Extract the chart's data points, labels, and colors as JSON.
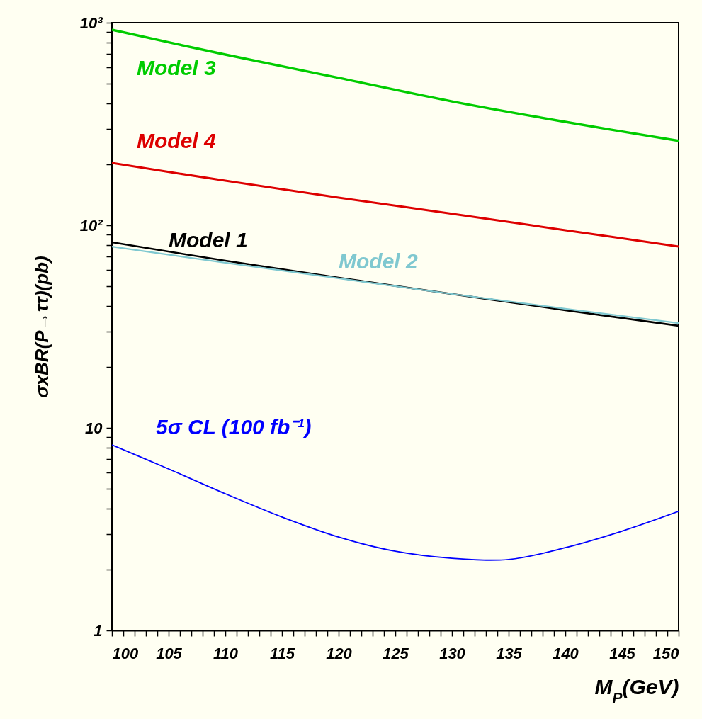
{
  "chart_data": {
    "type": "line",
    "xlabel": "M$_{P}$(GeV)",
    "ylabel": "σxBR(P→ττ)(pb)",
    "log": "y",
    "grid": false,
    "x": [
      100,
      110,
      120,
      130,
      140,
      150
    ],
    "xlim": [
      100,
      150
    ],
    "xticks": [
      100,
      {
        "value": 101,
        "label": null
      },
      {
        "value": 102,
        "label": null
      },
      {
        "value": 103,
        "label": null
      },
      {
        "value": 104,
        "label": null
      },
      105,
      {
        "value": 106,
        "label": null
      },
      {
        "value": 107,
        "label": null
      },
      {
        "value": 108,
        "label": null
      },
      {
        "value": 109,
        "label": null
      },
      110,
      {
        "value": 111,
        "label": null
      },
      {
        "value": 112,
        "label": null
      },
      {
        "value": 113,
        "label": null
      },
      {
        "value": 114,
        "label": null
      },
      115,
      {
        "value": 116,
        "label": null
      },
      {
        "value": 117,
        "label": null
      },
      {
        "value": 118,
        "label": null
      },
      {
        "value": 119,
        "label": null
      },
      120,
      {
        "value": 121,
        "label": null
      },
      {
        "value": 122,
        "label": null
      },
      {
        "value": 123,
        "label": null
      },
      {
        "value": 124,
        "label": null
      },
      125,
      {
        "value": 126,
        "label": null
      },
      {
        "value": 127,
        "label": null
      },
      {
        "value": 128,
        "label": null
      },
      {
        "value": 129,
        "label": null
      },
      130,
      {
        "value": 131,
        "label": null
      },
      {
        "value": 132,
        "label": null
      },
      {
        "value": 133,
        "label": null
      },
      {
        "value": 134,
        "label": null
      },
      135,
      {
        "value": 136,
        "label": null
      },
      {
        "value": 137,
        "label": null
      },
      {
        "value": 138,
        "label": null
      },
      {
        "value": 139,
        "label": null
      },
      140,
      {
        "value": 141,
        "label": null
      },
      {
        "value": 142,
        "label": null
      },
      {
        "value": 143,
        "label": null
      },
      {
        "value": 144,
        "label": null
      },
      145,
      {
        "value": 146,
        "label": null
      },
      {
        "value": 147,
        "label": null
      },
      {
        "value": 148,
        "label": null
      },
      {
        "value": 149,
        "label": null
      },
      150
    ],
    "ylim": [
      1,
      1000
    ],
    "yticks": [
      1,
      {
        "value": 2,
        "label": null
      },
      {
        "value": 3,
        "label": null
      },
      {
        "value": 4,
        "label": null
      },
      {
        "value": 5,
        "label": null
      },
      {
        "value": 6,
        "label": null
      },
      {
        "value": 7,
        "label": null
      },
      {
        "value": 8,
        "label": null
      },
      {
        "value": 9,
        "label": null
      },
      10,
      {
        "value": 20,
        "label": null
      },
      {
        "value": 30,
        "label": null
      },
      {
        "value": 40,
        "label": null
      },
      {
        "value": 50,
        "label": null
      },
      {
        "value": 60,
        "label": null
      },
      {
        "value": 70,
        "label": null
      },
      {
        "value": 80,
        "label": null
      },
      {
        "value": 90,
        "label": null
      },
      {
        "value": 100,
        "label": "10²"
      },
      {
        "value": 200,
        "label": null
      },
      {
        "value": 300,
        "label": null
      },
      {
        "value": 400,
        "label": null
      },
      {
        "value": 500,
        "label": null
      },
      {
        "value": 600,
        "label": null
      },
      {
        "value": 700,
        "label": null
      },
      {
        "value": 800,
        "label": null
      },
      {
        "value": 900,
        "label": null
      },
      {
        "value": 1000,
        "label": "10³"
      }
    ],
    "series": [
      {
        "name": "Model 3",
        "color": "#00cc00",
        "values": [
          923,
          696,
          534,
          409,
          324,
          261
        ]
      },
      {
        "name": "Model 4",
        "color": "#dd0000",
        "values": [
          203,
          166,
          137,
          114,
          94.6,
          78.5
        ]
      },
      {
        "name": "Model 1",
        "color": "#000000",
        "values": [
          82.4,
          66.9,
          55.1,
          45.8,
          38.1,
          31.9
        ]
      },
      {
        "name": "Model 2",
        "color": "#7fc8d0",
        "values": [
          78.5,
          65.3,
          54.7,
          45.8,
          38.7,
          32.9
        ]
      },
      {
        "name": "5σ CL (100 fb⁻¹)",
        "color": "#0000ff",
        "x": [
          100,
          105,
          110,
          115,
          120,
          125,
          130,
          135,
          140,
          145,
          150
        ],
        "values": [
          8.24,
          6.27,
          4.73,
          3.63,
          2.89,
          2.46,
          2.27,
          2.24,
          2.56,
          3.09,
          3.87
        ]
      }
    ]
  }
}
